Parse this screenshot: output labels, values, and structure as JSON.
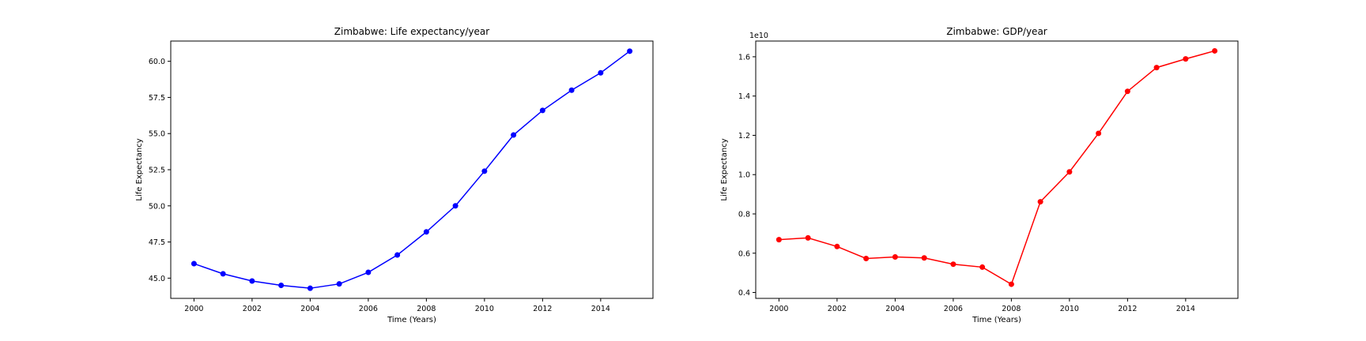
{
  "chart_data": [
    {
      "type": "line",
      "title": "Zimbabwe: Life expectancy/year",
      "xlabel": "Time (Years)",
      "ylabel": "Life Expectancy",
      "x": [
        2000,
        2001,
        2002,
        2003,
        2004,
        2005,
        2006,
        2007,
        2008,
        2009,
        2010,
        2011,
        2012,
        2013,
        2014,
        2015
      ],
      "series": [
        {
          "values": [
            46.0,
            45.3,
            44.8,
            44.5,
            44.3,
            44.6,
            45.4,
            46.6,
            48.2,
            50.0,
            52.4,
            54.9,
            56.6,
            58.0,
            59.2,
            60.7
          ]
        }
      ],
      "color": "#0000ff",
      "xlim": [
        1999.2,
        2015.8
      ],
      "ylim": [
        43.6,
        61.4
      ],
      "xticks": [
        2000,
        2002,
        2004,
        2006,
        2008,
        2010,
        2012,
        2014
      ],
      "xtick_labels": [
        "2000",
        "2002",
        "2004",
        "2006",
        "2008",
        "2010",
        "2012",
        "2014"
      ],
      "yticks": [
        45.0,
        47.5,
        50.0,
        52.5,
        55.0,
        57.5,
        60.0
      ],
      "ytick_labels": [
        "45.0",
        "47.5",
        "50.0",
        "52.5",
        "55.0",
        "57.5",
        "60.0"
      ],
      "scale_label": "",
      "grid": false
    },
    {
      "type": "line",
      "title": "Zimbabwe: GDP/year",
      "xlabel": "Time (Years)",
      "ylabel": "Life Expectancy",
      "x": [
        2000,
        2001,
        2002,
        2003,
        2004,
        2005,
        2006,
        2007,
        2008,
        2009,
        2010,
        2011,
        2012,
        2013,
        2014,
        2015
      ],
      "series": [
        {
          "values": [
            6690000000.0,
            6780000000.0,
            6340000000.0,
            5730000000.0,
            5810000000.0,
            5760000000.0,
            5440000000.0,
            5290000000.0,
            4420000000.0,
            8620000000.0,
            10140000000.0,
            12100000000.0,
            14240000000.0,
            15450000000.0,
            15890000000.0,
            16300000000.0
          ]
        }
      ],
      "color": "#ff0000",
      "xlim": [
        1999.2,
        2015.8
      ],
      "ylim": [
        3700000000.0,
        16800000000.0
      ],
      "xticks": [
        2000,
        2002,
        2004,
        2006,
        2008,
        2010,
        2012,
        2014
      ],
      "xtick_labels": [
        "2000",
        "2002",
        "2004",
        "2006",
        "2008",
        "2010",
        "2012",
        "2014"
      ],
      "yticks": [
        4000000000.0,
        6000000000.0,
        8000000000.0,
        10000000000.0,
        12000000000.0,
        14000000000.0,
        16000000000.0
      ],
      "ytick_labels": [
        "0.4",
        "0.6",
        "0.8",
        "1.0",
        "1.2",
        "1.4",
        "1.6"
      ],
      "scale_label": "1e10",
      "grid": false
    }
  ]
}
